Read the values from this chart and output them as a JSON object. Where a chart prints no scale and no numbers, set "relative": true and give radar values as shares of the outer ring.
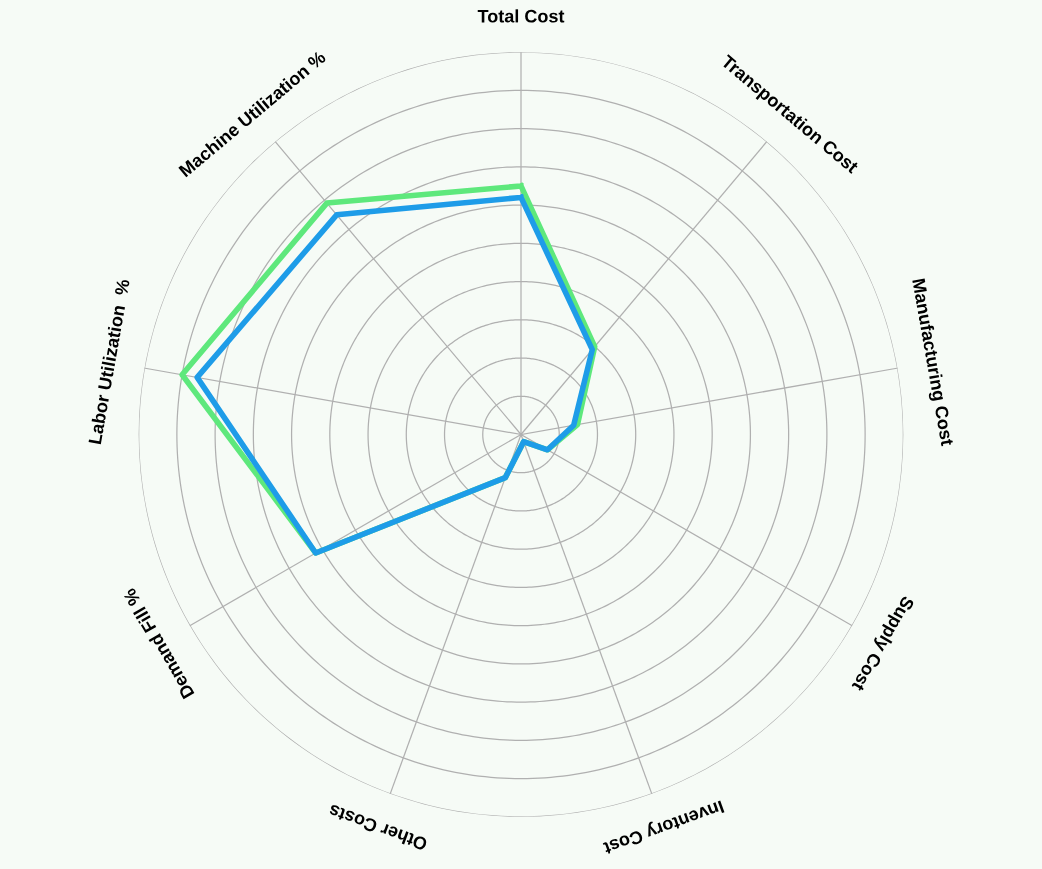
{
  "chart_data": {
    "type": "radar",
    "relative": true,
    "grid": true,
    "categories": [
      "Total Cost",
      "Transportation Cost",
      "Manufacturing Cost",
      "Supply Cost",
      "Inventory Cost",
      "Other Costs",
      "Demand Fill %",
      "Labor Utilization  %",
      "Machine Utilization %"
    ],
    "series": [
      {
        "color": "#5ee87c",
        "values": [
          0.65,
          0.3,
          0.15,
          0.08,
          0.02,
          0.12,
          0.62,
          0.9,
          0.79
        ]
      },
      {
        "color": "#1e9ce8",
        "values": [
          0.62,
          0.29,
          0.14,
          0.08,
          0.02,
          0.12,
          0.62,
          0.86,
          0.75
        ]
      }
    ]
  }
}
